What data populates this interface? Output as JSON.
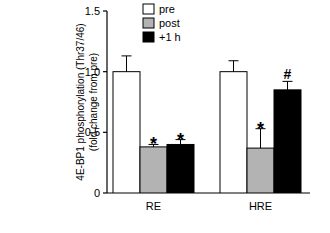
{
  "chart_data": {
    "type": "bar",
    "y_label": [
      "4E-BP1 phosphorylation (Thr37/46)",
      "(fold change from pre)"
    ],
    "categories": [
      "RE",
      "HRE"
    ],
    "series": [
      {
        "name": "pre",
        "color": "#ffffff",
        "values": [
          1.0,
          1.0
        ],
        "errors": [
          0.13,
          0.09
        ],
        "annotations": [
          null,
          null
        ]
      },
      {
        "name": "post",
        "color": "#b3b3b3",
        "values": [
          0.38,
          0.37
        ],
        "errors": [
          0.02,
          0.16
        ],
        "annotations": [
          "*",
          "*"
        ]
      },
      {
        "name": "+1 h",
        "color": "#000000",
        "values": [
          0.4,
          0.85
        ],
        "errors": [
          0.04,
          0.07
        ],
        "annotations": [
          "*",
          "#"
        ]
      }
    ],
    "ylim": [
      0,
      1.5
    ],
    "yticks": [
      0,
      0.5,
      {
        "value": 1,
        "label": "1.0"
      },
      1.5
    ],
    "legend": "top",
    "grid": false
  }
}
